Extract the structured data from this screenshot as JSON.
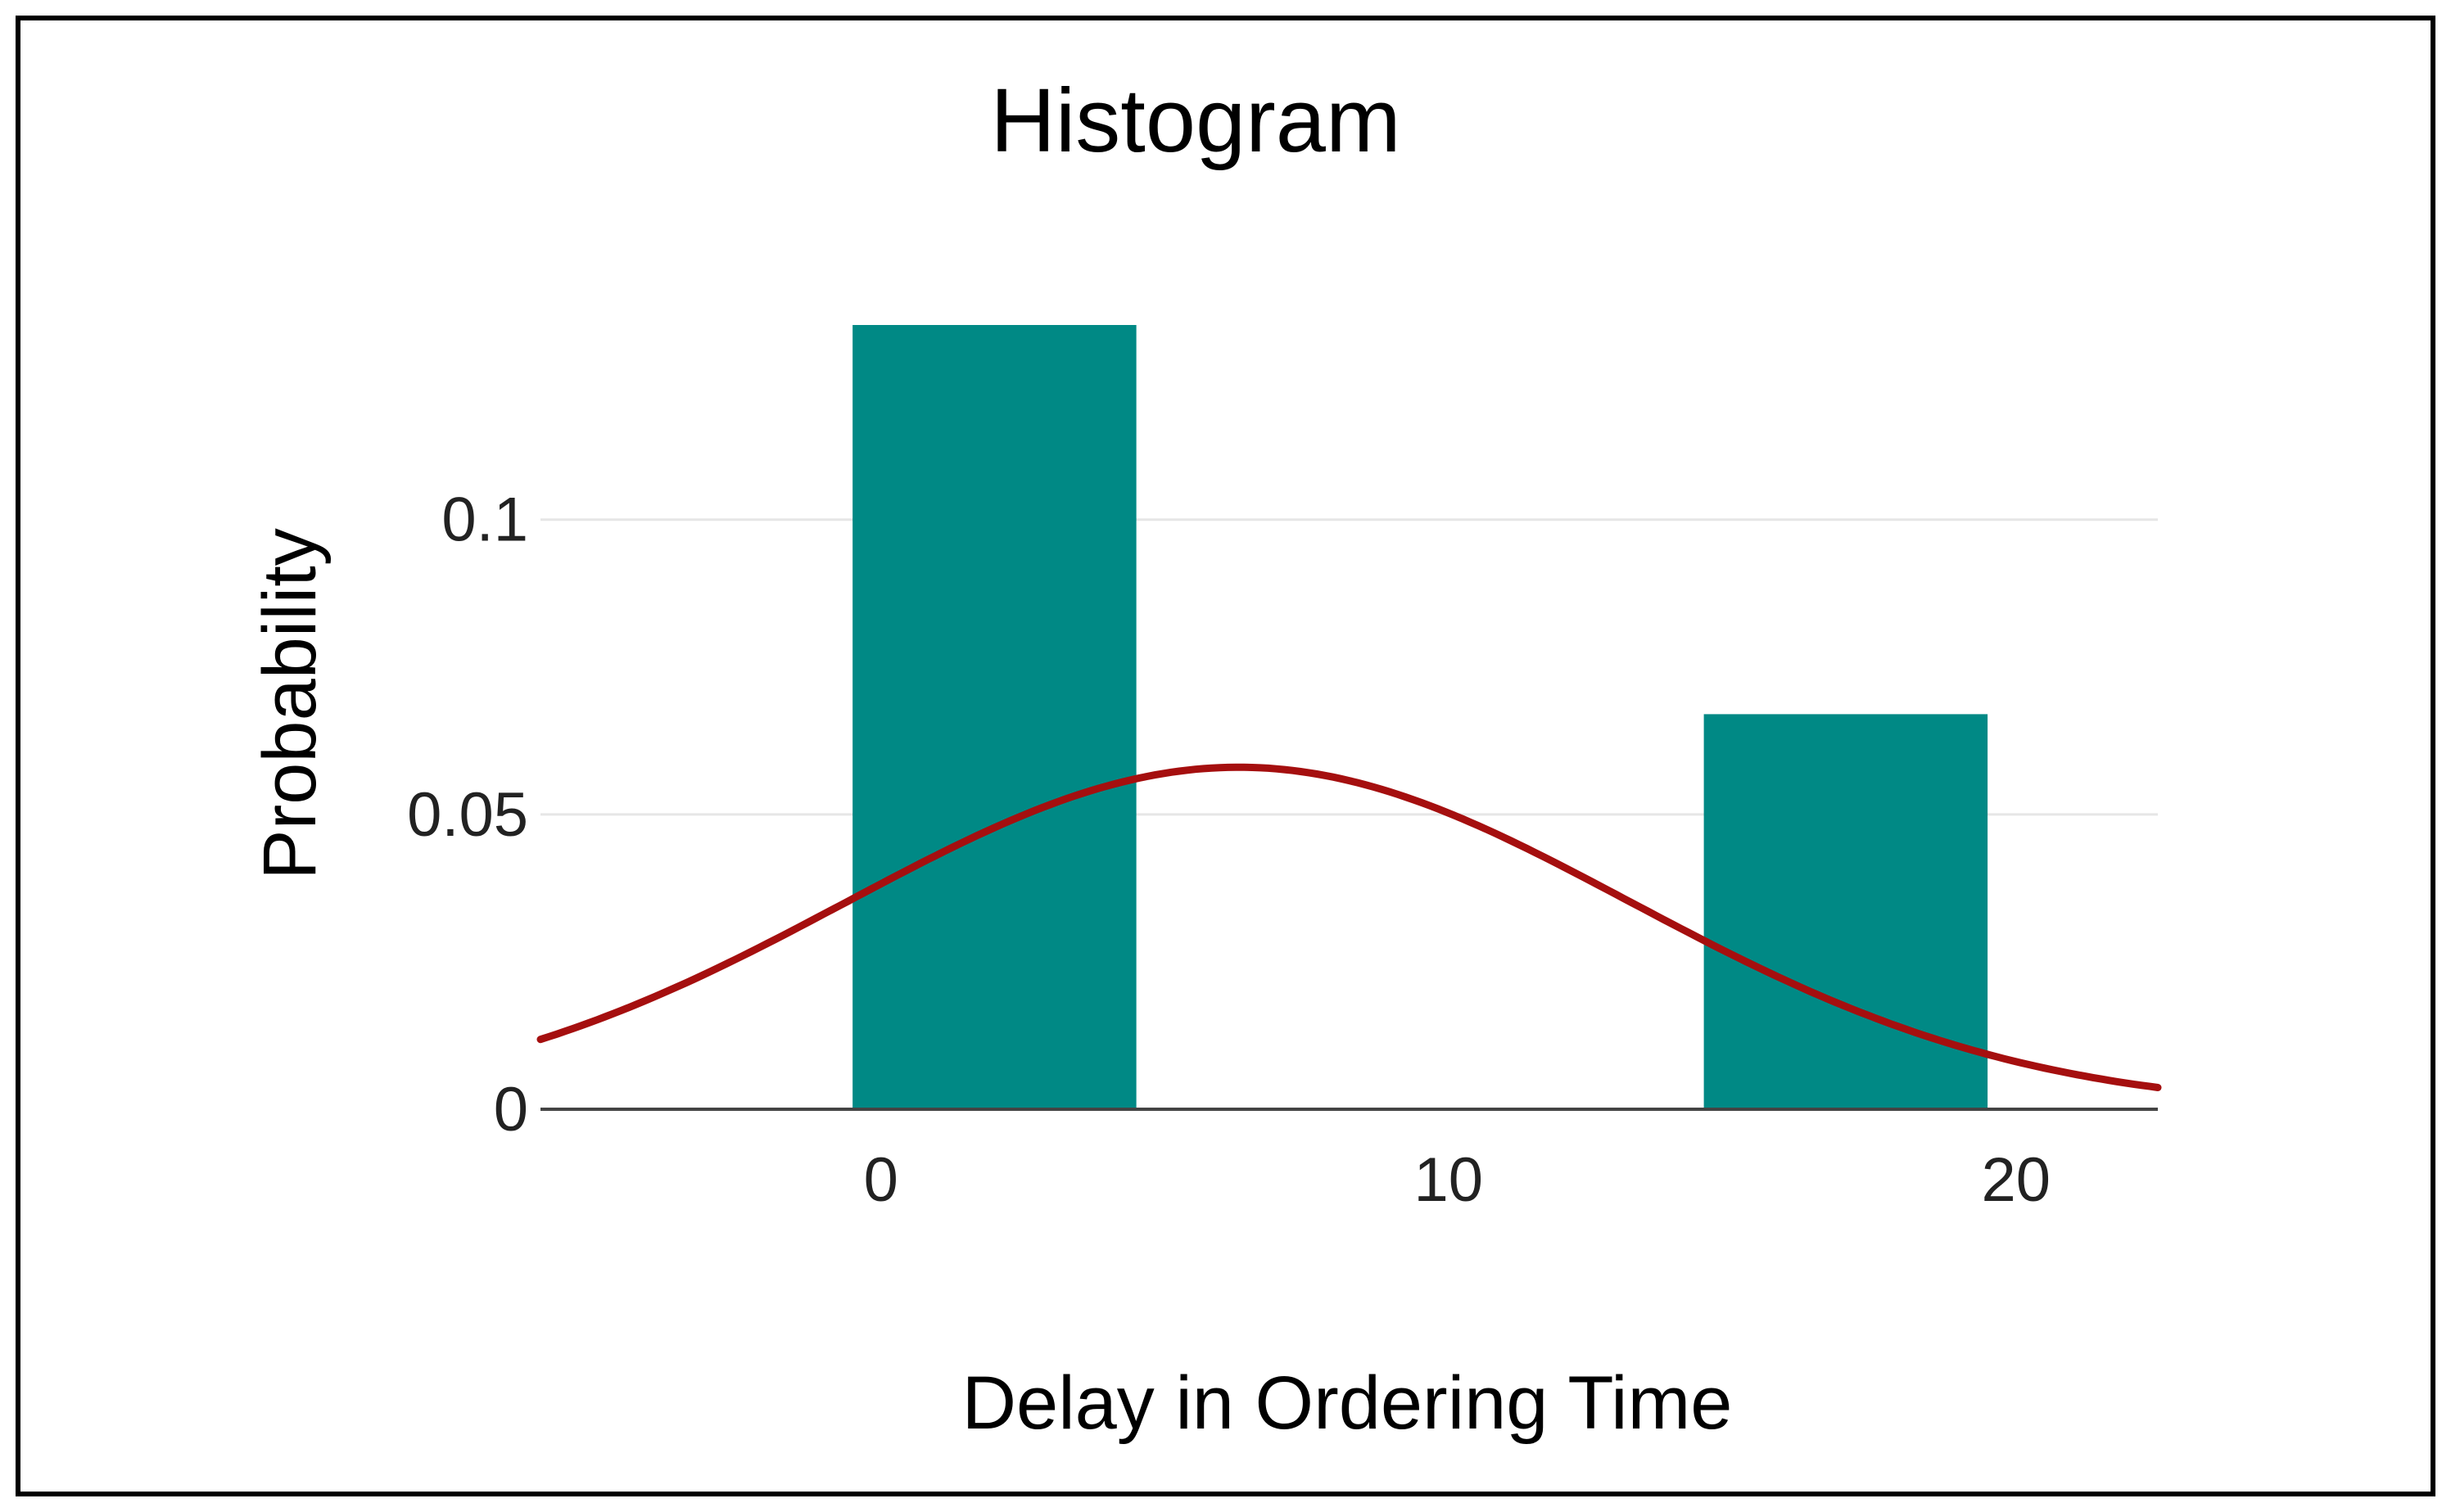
{
  "chart_data": {
    "type": "bar",
    "title": "Histogram",
    "xlabel": "Delay in Ordering Time",
    "ylabel": "Probability",
    "xlim": [
      -6,
      22.5
    ],
    "ylim": [
      0,
      0.133
    ],
    "x_ticks": [
      {
        "value": 0,
        "label": "0"
      },
      {
        "value": 10,
        "label": "10"
      },
      {
        "value": 20,
        "label": "20"
      }
    ],
    "y_ticks": [
      {
        "value": 0,
        "label": "0"
      },
      {
        "value": 0.05,
        "label": "0.05"
      },
      {
        "value": 0.1,
        "label": "0.1"
      }
    ],
    "grid": true,
    "bins": [
      {
        "start": -0.5,
        "end": 4.5,
        "value": 0.133
      },
      {
        "start": 14.5,
        "end": 19.5,
        "value": 0.067
      }
    ],
    "curve": {
      "type": "normal-density",
      "mean": 6.3,
      "sd": 6.9,
      "peak": 0.058,
      "color": "#a50f0f"
    },
    "colors": {
      "bars": "#008985",
      "curve": "#a50f0f",
      "grid": "#e6e6e6",
      "baseline": "#444444",
      "frame": "#000000"
    }
  }
}
